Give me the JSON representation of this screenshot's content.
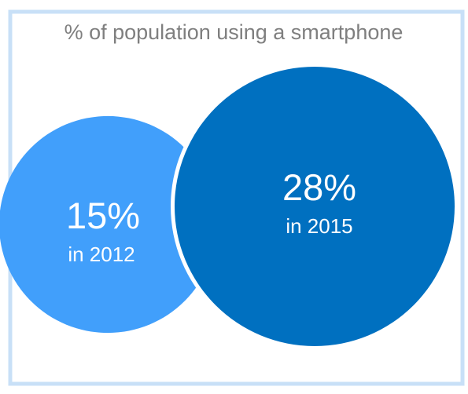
{
  "chart_data": {
    "type": "bubble",
    "title": "% of population using a smartphone",
    "unit": "%",
    "series": [
      {
        "value": 15,
        "value_label": "15%",
        "sublabel": "in 2012",
        "year": 2012,
        "color": "#419ffb"
      },
      {
        "value": 28,
        "value_label": "28%",
        "sublabel": "in 2015",
        "year": 2015,
        "color": "#0070c0"
      }
    ]
  },
  "colors": {
    "frame": "#c8e0f7",
    "title": "#7f7f7f",
    "label": "#ffffff",
    "separator": "#ffffff"
  }
}
